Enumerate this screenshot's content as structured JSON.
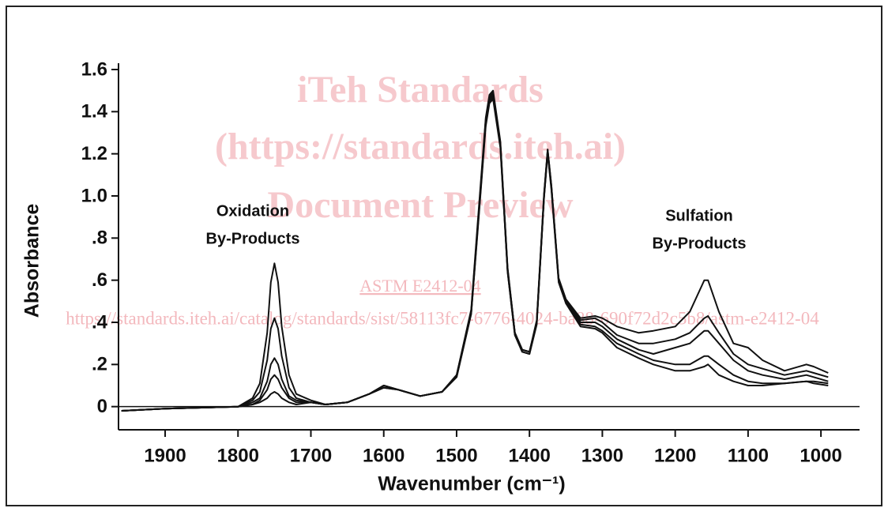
{
  "chart_data": {
    "type": "line",
    "ylabel": "Absorbance",
    "xlabel": "Wavenumber (cm⁻¹)",
    "annotations": [
      [
        "Oxidation",
        "By-Products"
      ],
      [
        "Sulfation",
        "By-Products"
      ]
    ],
    "watermark": [
      "iTeh Standards",
      "(https://standards.iteh.ai)",
      "Document Preview",
      "ASTM E2412-04",
      "https://standards.iteh.ai/catalog/standards/sist/58113fc7-6776-4024-ba88-690f72d2c5b8/astm-e2412-04"
    ],
    "xlim": [
      1964,
      947
    ],
    "ylim": [
      -0.11,
      1.63
    ],
    "xticks": [
      1900,
      1800,
      1700,
      1600,
      1500,
      1400,
      1300,
      1200,
      1100,
      1000
    ],
    "yticks": [
      1.6,
      1.4,
      1.2,
      {
        "value": 1,
        "label": "1.0"
      },
      {
        "value": 0.8,
        "label": ".8"
      },
      {
        "value": 0.6,
        "label": ".6"
      },
      {
        "value": 0.4,
        "label": ".4"
      },
      {
        "value": 0.2,
        "label": ".2"
      },
      0
    ],
    "x": [
      1960,
      1900,
      1850,
      1800,
      1780,
      1770,
      1760,
      1755,
      1750,
      1745,
      1740,
      1730,
      1720,
      1700,
      1680,
      1650,
      1620,
      1600,
      1580,
      1550,
      1520,
      1500,
      1480,
      1470,
      1460,
      1455,
      1450,
      1440,
      1430,
      1420,
      1410,
      1400,
      1390,
      1380,
      1375,
      1370,
      1360,
      1350,
      1330,
      1310,
      1300,
      1280,
      1250,
      1230,
      1200,
      1180,
      1160,
      1155,
      1140,
      1120,
      1100,
      1080,
      1050,
      1020,
      1010,
      990
    ],
    "series": [
      {
        "color": "#111111",
        "values": [
          -0.02,
          -0.01,
          -0.005,
          0,
          0.04,
          0.11,
          0.35,
          0.59,
          0.68,
          0.59,
          0.38,
          0.15,
          0.06,
          0.03,
          0.01,
          0.02,
          0.06,
          0.1,
          0.08,
          0.05,
          0.07,
          0.15,
          0.46,
          0.92,
          1.37,
          1.48,
          1.5,
          1.26,
          0.66,
          0.35,
          0.27,
          0.26,
          0.41,
          1.01,
          1.22,
          1.05,
          0.61,
          0.51,
          0.42,
          0.43,
          0.42,
          0.38,
          0.35,
          0.36,
          0.38,
          0.45,
          0.6,
          0.6,
          0.45,
          0.3,
          0.28,
          0.22,
          0.17,
          0.2,
          0.19,
          0.16
        ]
      },
      {
        "color": "#111111",
        "values": [
          -0.02,
          -0.01,
          -0.005,
          0,
          0.03,
          0.07,
          0.22,
          0.37,
          0.42,
          0.37,
          0.24,
          0.09,
          0.04,
          0.02,
          0.01,
          0.02,
          0.06,
          0.09,
          0.08,
          0.05,
          0.07,
          0.15,
          0.45,
          0.9,
          1.36,
          1.47,
          1.49,
          1.25,
          0.65,
          0.35,
          0.27,
          0.26,
          0.4,
          1.0,
          1.21,
          1.04,
          0.6,
          0.5,
          0.41,
          0.42,
          0.4,
          0.34,
          0.3,
          0.3,
          0.32,
          0.35,
          0.42,
          0.43,
          0.35,
          0.25,
          0.2,
          0.18,
          0.15,
          0.17,
          0.16,
          0.14
        ]
      },
      {
        "color": "#111111",
        "values": [
          -0.02,
          -0.01,
          -0.005,
          0,
          0.02,
          0.04,
          0.12,
          0.2,
          0.23,
          0.2,
          0.13,
          0.05,
          0.03,
          0.02,
          0.01,
          0.02,
          0.06,
          0.1,
          0.08,
          0.05,
          0.07,
          0.15,
          0.45,
          0.9,
          1.35,
          1.46,
          1.48,
          1.25,
          0.65,
          0.35,
          0.27,
          0.26,
          0.4,
          1.0,
          1.22,
          1.05,
          0.6,
          0.5,
          0.4,
          0.4,
          0.38,
          0.32,
          0.27,
          0.25,
          0.28,
          0.3,
          0.36,
          0.36,
          0.3,
          0.22,
          0.17,
          0.15,
          0.13,
          0.15,
          0.14,
          0.12
        ]
      },
      {
        "color": "#111111",
        "values": [
          -0.02,
          -0.01,
          -0.005,
          0,
          0.01,
          0.03,
          0.08,
          0.13,
          0.15,
          0.13,
          0.09,
          0.04,
          0.02,
          0.02,
          0.01,
          0.02,
          0.06,
          0.1,
          0.08,
          0.05,
          0.07,
          0.14,
          0.44,
          0.89,
          1.34,
          1.45,
          1.47,
          1.24,
          0.64,
          0.34,
          0.26,
          0.25,
          0.4,
          0.99,
          1.21,
          1.04,
          0.6,
          0.5,
          0.39,
          0.38,
          0.36,
          0.3,
          0.25,
          0.22,
          0.2,
          0.2,
          0.24,
          0.24,
          0.2,
          0.15,
          0.12,
          0.11,
          0.11,
          0.12,
          0.12,
          0.11
        ]
      },
      {
        "color": "#111111",
        "values": [
          -0.02,
          -0.01,
          -0.005,
          0,
          0.01,
          0.02,
          0.04,
          0.06,
          0.07,
          0.06,
          0.04,
          0.02,
          0.01,
          0.02,
          0.01,
          0.02,
          0.06,
          0.09,
          0.08,
          0.05,
          0.07,
          0.14,
          0.44,
          0.88,
          1.33,
          1.44,
          1.46,
          1.23,
          0.64,
          0.34,
          0.26,
          0.25,
          0.39,
          0.99,
          1.2,
          1.03,
          0.59,
          0.49,
          0.38,
          0.37,
          0.35,
          0.28,
          0.23,
          0.2,
          0.17,
          0.17,
          0.19,
          0.2,
          0.15,
          0.12,
          0.1,
          0.1,
          0.11,
          0.12,
          0.11,
          0.1
        ]
      }
    ]
  }
}
